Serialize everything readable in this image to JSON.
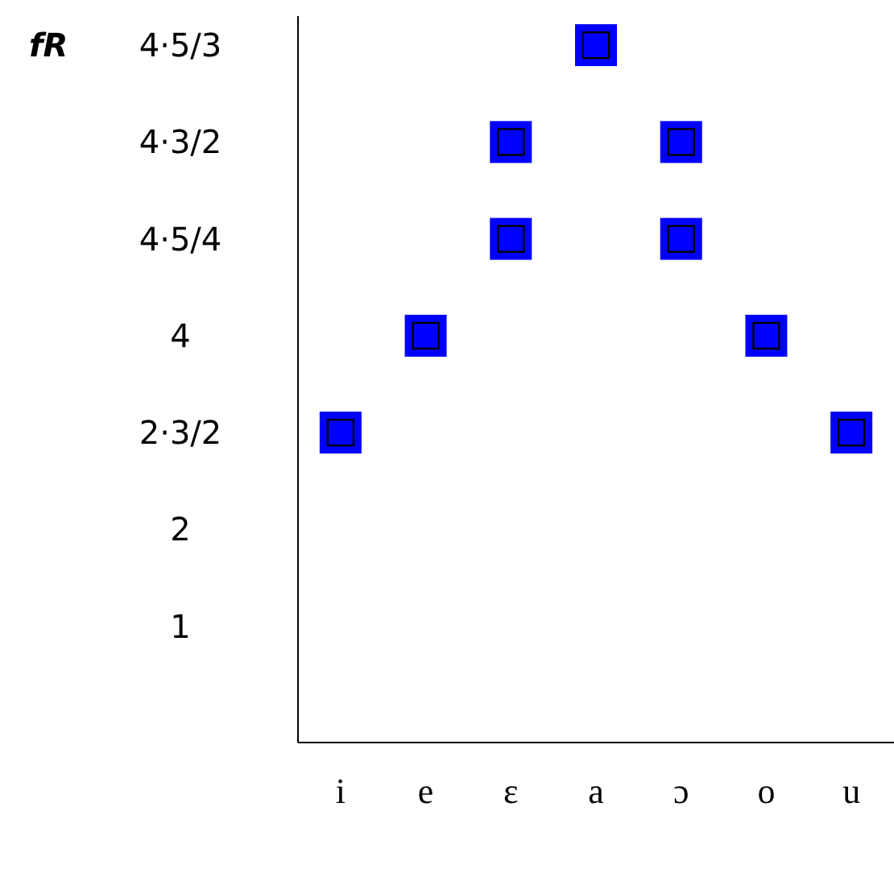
{
  "chart_data": {
    "type": "scatter",
    "ylabel": "fR",
    "categories": [
      "i",
      "e",
      "ɛ",
      "a",
      "ɔ",
      "o",
      "u"
    ],
    "series": [
      {
        "color": "#0000ff",
        "values": [
          3,
          4,
          6,
          7,
          6,
          4,
          3
        ]
      },
      {
        "color": "#0000ff",
        "values": [
          null,
          null,
          5,
          null,
          5,
          null,
          null
        ]
      }
    ],
    "ylim": [
      -0.2,
      7.3
    ],
    "yticks": [
      1,
      2,
      {
        "value": 3,
        "label": "2·3/2"
      },
      4,
      {
        "value": 5,
        "label": "4·5/4"
      },
      {
        "value": 6,
        "label": "4·3/2"
      },
      {
        "value": 7,
        "label": "4·5/3"
      }
    ],
    "marker": "square",
    "grid": false,
    "legend": false
  }
}
